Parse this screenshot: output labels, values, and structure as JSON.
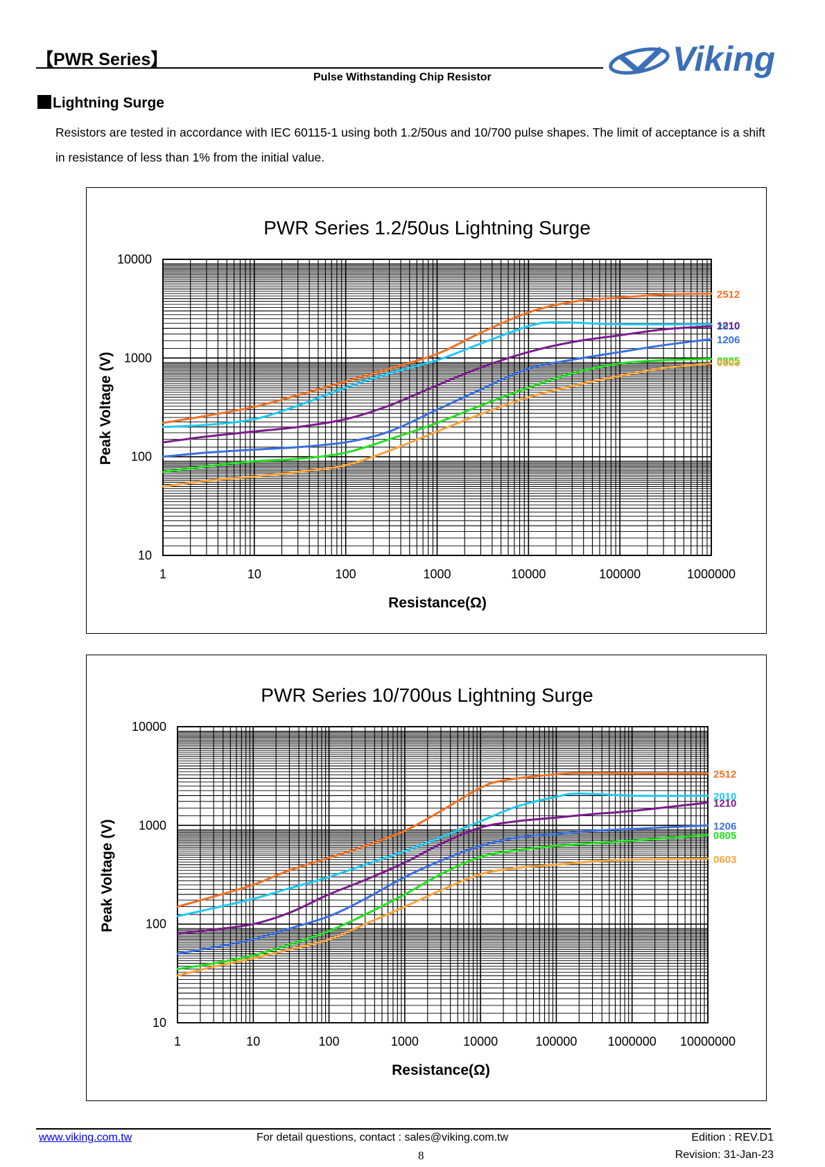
{
  "header": {
    "series_title": "【PWR Series】",
    "subtitle": "Pulse Withstanding Chip Resistor",
    "logo_text": "Viking"
  },
  "section": {
    "title": "Lightning Surge",
    "paragraph": "Resistors are tested in accordance with IEC 60115-1 using both 1.2/50us and 10/700 pulse shapes. The limit of acceptance is a shift in resistance of less than 1% from the initial value."
  },
  "colors": {
    "2512": "#F07122",
    "2010": "#1FC8F0",
    "1210": "#7A1C8C",
    "1206": "#3A6FE0",
    "0805": "#22E01E",
    "0603": "#F8A33A"
  },
  "chart_data": [
    {
      "type": "line",
      "title": "PWR Series 1.2/50us Lightning Surge",
      "xlabel": "Resistance(Ω)",
      "ylabel": "Peak Voltage (V)",
      "x_scale": "log",
      "y_scale": "log",
      "xlim": [
        1,
        1000000
      ],
      "ylim": [
        10,
        10000
      ],
      "x_ticks": [
        "1",
        "10",
        "100",
        "1000",
        "10000",
        "100000",
        "1000000"
      ],
      "y_ticks": [
        "10",
        "100",
        "1000",
        "10000"
      ],
      "grid": true,
      "legend": "right-end labels",
      "series": [
        {
          "name": "2512",
          "x": [
            1,
            3,
            10,
            30,
            100,
            300,
            1000,
            3000,
            10000,
            30000,
            100000,
            300000,
            1000000
          ],
          "values": [
            220,
            260,
            320,
            420,
            580,
            780,
            1100,
            1800,
            2900,
            3700,
            4100,
            4400,
            4500
          ]
        },
        {
          "name": "2010",
          "x": [
            1,
            3,
            10,
            30,
            100,
            300,
            1000,
            3000,
            10000,
            20000,
            100000,
            1000000
          ],
          "values": [
            200,
            210,
            240,
            330,
            500,
            700,
            950,
            1400,
            2100,
            2300,
            2200,
            2200
          ]
        },
        {
          "name": "1210",
          "x": [
            1,
            3,
            10,
            30,
            100,
            300,
            1000,
            3000,
            10000,
            30000,
            100000,
            300000,
            1000000
          ],
          "values": [
            140,
            160,
            180,
            200,
            240,
            330,
            530,
            800,
            1150,
            1450,
            1700,
            1950,
            2100
          ]
        },
        {
          "name": "1206",
          "x": [
            1,
            3,
            10,
            30,
            100,
            300,
            1000,
            3000,
            10000,
            30000,
            100000,
            300000,
            1000000
          ],
          "values": [
            100,
            110,
            118,
            125,
            140,
            180,
            300,
            480,
            780,
            960,
            1150,
            1350,
            1550
          ]
        },
        {
          "name": "0805",
          "x": [
            1,
            3,
            10,
            30,
            100,
            300,
            1000,
            3000,
            10000,
            30000,
            100000,
            300000,
            1000000
          ],
          "values": [
            70,
            80,
            90,
            95,
            110,
            150,
            220,
            330,
            500,
            700,
            880,
            950,
            980
          ]
        },
        {
          "name": "0603",
          "x": [
            1,
            3,
            10,
            30,
            100,
            300,
            1000,
            3000,
            10000,
            30000,
            100000,
            300000,
            1000000
          ],
          "values": [
            50,
            57,
            63,
            70,
            82,
            115,
            180,
            270,
            400,
            520,
            660,
            790,
            880
          ]
        }
      ]
    },
    {
      "type": "line",
      "title": "PWR Series 10/700us Lightning Surge",
      "xlabel": "Resistance(Ω)",
      "ylabel": "Peak Voltage (V)",
      "x_scale": "log",
      "y_scale": "log",
      "xlim": [
        1,
        10000000
      ],
      "ylim": [
        10,
        10000
      ],
      "x_ticks": [
        "1",
        "10",
        "100",
        "1000",
        "10000",
        "100000",
        "1000000",
        "10000000"
      ],
      "y_ticks": [
        "10",
        "100",
        "1000",
        "10000"
      ],
      "grid": true,
      "legend": "right-end labels",
      "series": [
        {
          "name": "2512",
          "x": [
            1,
            3,
            10,
            30,
            100,
            300,
            1000,
            3000,
            10000,
            20000,
            100000,
            300000,
            1000000,
            10000000
          ],
          "values": [
            150,
            190,
            250,
            350,
            470,
            620,
            880,
            1400,
            2400,
            2850,
            3300,
            3400,
            3350,
            3350
          ]
        },
        {
          "name": "2010",
          "x": [
            1,
            3,
            10,
            30,
            100,
            300,
            1000,
            3000,
            10000,
            30000,
            100000,
            200000,
            1000000,
            10000000
          ],
          "values": [
            120,
            145,
            180,
            230,
            300,
            400,
            550,
            760,
            1100,
            1550,
            1950,
            2100,
            2000,
            2000
          ]
        },
        {
          "name": "1210",
          "x": [
            1,
            3,
            10,
            30,
            100,
            300,
            1000,
            3000,
            10000,
            30000,
            100000,
            300000,
            1000000,
            10000000
          ],
          "values": [
            80,
            88,
            100,
            130,
            200,
            280,
            420,
            650,
            950,
            1100,
            1200,
            1300,
            1400,
            1700
          ]
        },
        {
          "name": "1206",
          "x": [
            1,
            3,
            10,
            30,
            100,
            300,
            1000,
            3000,
            10000,
            30000,
            100000,
            300000,
            1000000,
            10000000
          ],
          "values": [
            50,
            58,
            70,
            90,
            120,
            180,
            300,
            440,
            620,
            750,
            820,
            880,
            920,
            1000
          ]
        },
        {
          "name": "0805",
          "x": [
            1,
            3,
            10,
            30,
            100,
            300,
            1000,
            3000,
            10000,
            30000,
            100000,
            300000,
            1000000,
            10000000
          ],
          "values": [
            35,
            40,
            48,
            62,
            85,
            125,
            200,
            320,
            480,
            560,
            620,
            660,
            700,
            800
          ]
        },
        {
          "name": "0603",
          "x": [
            1,
            3,
            10,
            30,
            100,
            300,
            1000,
            3000,
            10000,
            30000,
            100000,
            300000,
            1000000,
            10000000
          ],
          "values": [
            30,
            37,
            45,
            55,
            70,
            100,
            150,
            220,
            320,
            370,
            400,
            430,
            450,
            460
          ]
        }
      ]
    }
  ],
  "footer": {
    "website": "www.viking.com.tw",
    "contact": "For detail questions, contact : sales@viking.com.tw",
    "edition": "Edition : REV.D1",
    "page": "8",
    "revision": "Revision: 31-Jan-23"
  }
}
